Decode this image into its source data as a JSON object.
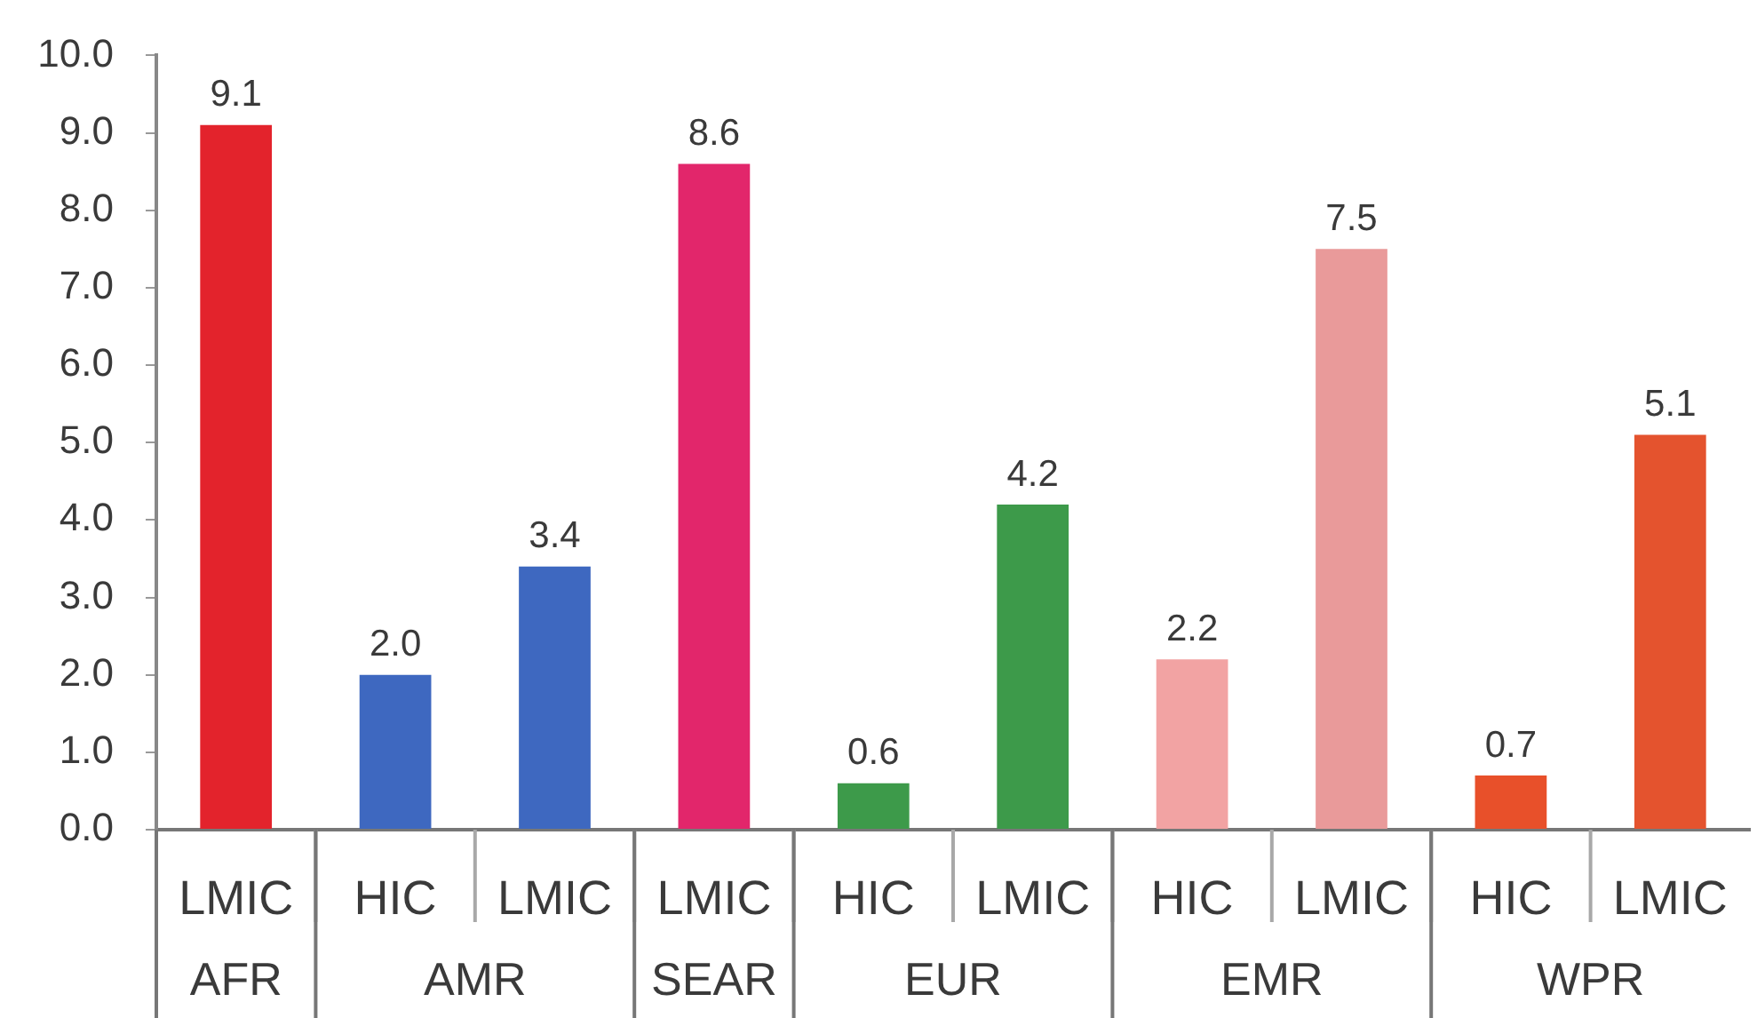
{
  "chart_data": {
    "type": "bar",
    "categories": [
      "LMIC",
      "HIC",
      "LMIC",
      "LMIC",
      "HIC",
      "LMIC",
      "HIC",
      "LMIC",
      "HIC",
      "LMIC"
    ],
    "values": [
      9.1,
      2.0,
      3.4,
      8.6,
      0.6,
      4.2,
      2.2,
      7.5,
      0.7,
      5.1
    ],
    "colors": [
      "#e3232c",
      "#3e68c0",
      "#3e68c0",
      "#e2266b",
      "#3d9a4a",
      "#3d9a4a",
      "#f2a3a3",
      "#e99a9a",
      "#e8502a",
      "#e4532e"
    ],
    "value_labels": [
      "9.1",
      "2.0",
      "3.4",
      "8.6",
      "0.6",
      "4.2",
      "2.2",
      "7.5",
      "0.7",
      "5.1"
    ],
    "ylim": [
      0,
      10
    ],
    "yticks": [
      {
        "value": 0,
        "label": "0.0"
      },
      {
        "value": 1,
        "label": "1.0"
      },
      {
        "value": 2,
        "label": "2.0"
      },
      {
        "value": 3,
        "label": "3.0"
      },
      {
        "value": 4,
        "label": "4.0"
      },
      {
        "value": 5,
        "label": "5.0"
      },
      {
        "value": 6,
        "label": "6.0"
      },
      {
        "value": 7,
        "label": "7.0"
      },
      {
        "value": 8,
        "label": "8.0"
      },
      {
        "value": 9,
        "label": "9.0"
      },
      {
        "value": 10,
        "label": "10.0"
      }
    ],
    "annotations": [
      "AFR",
      "AMR",
      "SEAR",
      "EUR",
      "EMR",
      "WPR"
    ]
  }
}
